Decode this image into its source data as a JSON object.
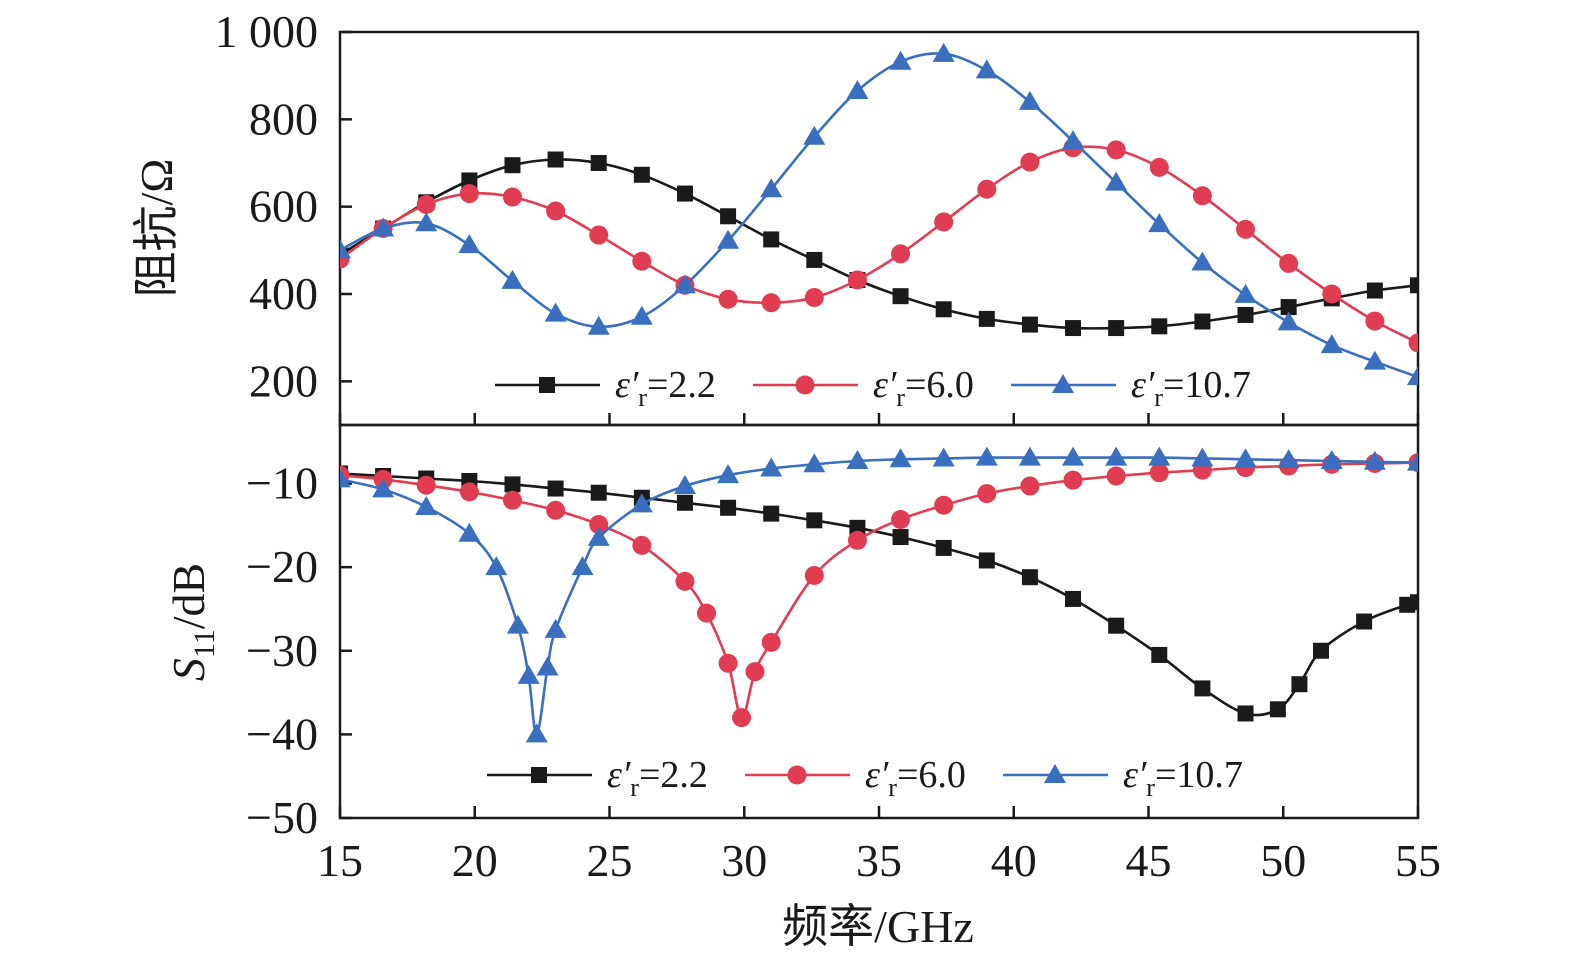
{
  "chart_data": [
    {
      "type": "line",
      "ylabel": "阻抗/Ω",
      "ylim": [
        100,
        1000
      ],
      "yticks": [
        200,
        400,
        600,
        800,
        1000
      ],
      "ytick_labels": [
        "200",
        "400",
        "600",
        "800",
        "1 000"
      ],
      "xlim": [
        15,
        55
      ],
      "legend_position": "bottom",
      "series": [
        {
          "name": "ε′r=2.2",
          "marker": "square",
          "color": "#1a1a1a",
          "x": [
            15.0,
            16.6,
            18.2,
            19.8,
            21.4,
            23.0,
            24.6,
            26.2,
            27.8,
            29.4,
            31.0,
            32.6,
            34.2,
            35.8,
            37.4,
            39.0,
            40.6,
            42.2,
            43.8,
            45.4,
            47.0,
            48.6,
            50.2,
            51.8,
            53.4,
            55.0
          ],
          "y": [
            490,
            550,
            610,
            660,
            695,
            708,
            700,
            673,
            630,
            578,
            525,
            478,
            432,
            395,
            365,
            343,
            330,
            322,
            322,
            326,
            337,
            352,
            370,
            390,
            408,
            420
          ]
        },
        {
          "name": "ε′r=6.0",
          "marker": "circle",
          "color": "#e03c52",
          "x": [
            15.0,
            16.6,
            18.2,
            19.8,
            21.4,
            23.0,
            24.6,
            26.2,
            27.8,
            29.4,
            31.0,
            32.6,
            34.2,
            35.8,
            37.4,
            39.0,
            40.6,
            42.2,
            43.8,
            45.4,
            47.0,
            48.6,
            50.2,
            51.8,
            53.4,
            55.0
          ],
          "y": [
            480,
            550,
            605,
            630,
            622,
            590,
            535,
            475,
            420,
            388,
            380,
            392,
            432,
            492,
            565,
            640,
            702,
            735,
            730,
            690,
            625,
            548,
            470,
            400,
            338,
            288
          ]
        },
        {
          "name": "ε′r=10.7",
          "marker": "triangle",
          "color": "#3a6fbf",
          "x": [
            15.0,
            16.6,
            18.2,
            19.8,
            21.4,
            23.0,
            24.6,
            26.2,
            27.8,
            29.4,
            31.0,
            32.6,
            34.2,
            35.8,
            37.4,
            39.0,
            40.6,
            42.2,
            43.8,
            45.4,
            47.0,
            48.6,
            50.2,
            51.8,
            53.4,
            55.0
          ],
          "y": [
            500,
            550,
            562,
            512,
            430,
            355,
            325,
            348,
            420,
            522,
            640,
            760,
            865,
            932,
            950,
            912,
            840,
            750,
            655,
            560,
            472,
            398,
            335,
            283,
            245,
            210
          ]
        }
      ]
    },
    {
      "type": "line",
      "xlabel": "频率/GHz",
      "ylabel": "S11/dB",
      "ylabel_main": "S",
      "ylabel_sub": "11",
      "ylabel_rest": "/dB",
      "ylim": [
        -50,
        -3
      ],
      "yticks": [
        -50,
        -40,
        -30,
        -20,
        -10
      ],
      "ytick_labels": [
        "−50",
        "−40",
        "−30",
        "−20",
        "−10"
      ],
      "xlim": [
        15,
        55
      ],
      "xticks": [
        15,
        20,
        25,
        30,
        35,
        40,
        45,
        50,
        55
      ],
      "xtick_labels": [
        "15",
        "20",
        "25",
        "30",
        "35",
        "40",
        "45",
        "50",
        "55"
      ],
      "legend_position": "bottom",
      "series": [
        {
          "name": "ε′r=2.2",
          "marker": "square",
          "color": "#1a1a1a",
          "x": [
            15.0,
            16.6,
            18.2,
            19.8,
            21.4,
            23.0,
            24.6,
            26.2,
            27.8,
            29.4,
            31.0,
            32.6,
            34.2,
            35.8,
            37.4,
            39.0,
            40.6,
            42.2,
            43.8,
            45.4,
            47.0,
            48.6,
            49.8,
            50.6,
            51.4,
            53.0,
            54.6,
            55.0
          ],
          "y": [
            -8.8,
            -9.1,
            -9.4,
            -9.7,
            -10.1,
            -10.6,
            -11.1,
            -11.7,
            -12.3,
            -12.9,
            -13.6,
            -14.4,
            -15.3,
            -16.4,
            -17.7,
            -19.2,
            -21.2,
            -23.8,
            -27.0,
            -30.5,
            -34.5,
            -37.5,
            -37.0,
            -34.0,
            -30.0,
            -26.5,
            -24.5,
            -24.2
          ]
        },
        {
          "name": "ε′r=6.0",
          "marker": "circle",
          "color": "#e03c52",
          "x": [
            15.0,
            16.6,
            18.2,
            19.8,
            21.4,
            23.0,
            24.6,
            26.2,
            27.8,
            28.6,
            29.4,
            29.9,
            30.4,
            31.0,
            32.6,
            34.2,
            35.8,
            37.4,
            39.0,
            40.6,
            42.2,
            43.8,
            45.4,
            47.0,
            48.6,
            50.2,
            51.8,
            53.4,
            55.0
          ],
          "y": [
            -9.0,
            -9.5,
            -10.2,
            -11.0,
            -12.0,
            -13.2,
            -14.9,
            -17.4,
            -21.7,
            -25.5,
            -31.5,
            -38.0,
            -32.5,
            -29.0,
            -21.0,
            -16.8,
            -14.3,
            -12.6,
            -11.2,
            -10.3,
            -9.6,
            -9.1,
            -8.7,
            -8.4,
            -8.1,
            -7.9,
            -7.7,
            -7.6,
            -7.5
          ]
        },
        {
          "name": "ε′r=10.7",
          "marker": "triangle",
          "color": "#3a6fbf",
          "x": [
            15.0,
            16.6,
            18.2,
            19.8,
            20.8,
            21.6,
            22.0,
            22.3,
            22.7,
            23.0,
            24.0,
            24.6,
            26.2,
            27.8,
            29.4,
            31.0,
            32.6,
            34.2,
            35.8,
            37.4,
            39.0,
            40.6,
            42.2,
            43.8,
            45.4,
            47.0,
            48.6,
            50.2,
            51.8,
            53.4,
            55.0
          ],
          "y": [
            -9.5,
            -10.7,
            -12.8,
            -16.0,
            -20.0,
            -27.0,
            -33.0,
            -40.0,
            -32.0,
            -27.5,
            -20.0,
            -16.5,
            -12.5,
            -10.3,
            -9.0,
            -8.2,
            -7.7,
            -7.3,
            -7.1,
            -7.0,
            -6.9,
            -6.9,
            -6.9,
            -6.9,
            -6.9,
            -7.0,
            -7.1,
            -7.2,
            -7.3,
            -7.4,
            -7.5
          ]
        }
      ]
    }
  ]
}
